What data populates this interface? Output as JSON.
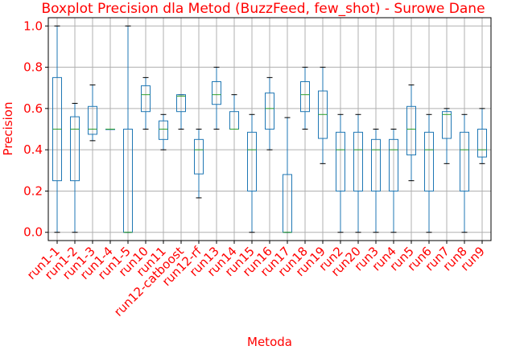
{
  "chart_data": {
    "type": "boxplot",
    "title": "Boxplot Precision dla Metod (BuzzFeed, few_shot) - Surowe Dane",
    "xlabel": "Metoda",
    "ylabel": "Precision",
    "ylim": [
      -0.04,
      1.04
    ],
    "yticks": [
      0.0,
      0.2,
      0.4,
      0.6,
      0.8,
      1.0
    ],
    "ytick_labels": [
      "0.0",
      "0.2",
      "0.4",
      "0.6",
      "0.8",
      "1.0"
    ],
    "grid": true,
    "label_color": "#ff0000",
    "box_color": "#1f77b4",
    "median_color": "#2ca02c",
    "categories": [
      "run1-1",
      "run1-2",
      "run1-3",
      "run1-4",
      "run1-5",
      "run10",
      "run11",
      "run12-catboost",
      "run12-rf",
      "run13",
      "run14",
      "run15",
      "run16",
      "run17",
      "run18",
      "run19",
      "run2",
      "run20",
      "run3",
      "run4",
      "run5",
      "run6",
      "run7",
      "run8",
      "run9"
    ],
    "boxes": [
      {
        "whislo": 0.0,
        "q1": 0.25,
        "med": 0.5,
        "q3": 0.75,
        "whishi": 1.0
      },
      {
        "whislo": 0.0,
        "q1": 0.25,
        "med": 0.5,
        "q3": 0.56,
        "whishi": 0.625
      },
      {
        "whislo": 0.444,
        "q1": 0.475,
        "med": 0.5,
        "q3": 0.61,
        "whishi": 0.714
      },
      {
        "whislo": 0.5,
        "q1": 0.5,
        "med": 0.5,
        "q3": 0.5,
        "whishi": 0.5
      },
      {
        "whislo": 0.0,
        "q1": 0.0,
        "med": 0.0,
        "q3": 0.5,
        "whishi": 1.0
      },
      {
        "whislo": 0.5,
        "q1": 0.585,
        "med": 0.667,
        "q3": 0.71,
        "whishi": 0.75
      },
      {
        "whislo": 0.4,
        "q1": 0.45,
        "med": 0.5,
        "q3": 0.54,
        "whishi": 0.571
      },
      {
        "whislo": 0.5,
        "q1": 0.585,
        "med": 0.66,
        "q3": 0.667,
        "whishi": 0.667
      },
      {
        "whislo": 0.167,
        "q1": 0.283,
        "med": 0.4,
        "q3": 0.45,
        "whishi": 0.5
      },
      {
        "whislo": 0.5,
        "q1": 0.62,
        "med": 0.667,
        "q3": 0.73,
        "whishi": 0.8
      },
      {
        "whislo": 0.5,
        "q1": 0.5,
        "med": 0.5,
        "q3": 0.585,
        "whishi": 0.667
      },
      {
        "whislo": 0.0,
        "q1": 0.2,
        "med": 0.4,
        "q3": 0.485,
        "whishi": 0.571
      },
      {
        "whislo": 0.4,
        "q1": 0.5,
        "med": 0.6,
        "q3": 0.675,
        "whishi": 0.75
      },
      {
        "whislo": 0.0,
        "q1": 0.0,
        "med": 0.0,
        "q3": 0.28,
        "whishi": 0.556
      },
      {
        "whislo": 0.5,
        "q1": 0.585,
        "med": 0.667,
        "q3": 0.73,
        "whishi": 0.8
      },
      {
        "whislo": 0.333,
        "q1": 0.455,
        "med": 0.571,
        "q3": 0.685,
        "whishi": 0.8
      },
      {
        "whislo": 0.0,
        "q1": 0.2,
        "med": 0.4,
        "q3": 0.485,
        "whishi": 0.571
      },
      {
        "whislo": 0.0,
        "q1": 0.2,
        "med": 0.4,
        "q3": 0.485,
        "whishi": 0.571
      },
      {
        "whislo": 0.0,
        "q1": 0.2,
        "med": 0.4,
        "q3": 0.45,
        "whishi": 0.5
      },
      {
        "whislo": 0.0,
        "q1": 0.2,
        "med": 0.4,
        "q3": 0.45,
        "whishi": 0.5
      },
      {
        "whislo": 0.25,
        "q1": 0.375,
        "med": 0.5,
        "q3": 0.61,
        "whishi": 0.714
      },
      {
        "whislo": 0.0,
        "q1": 0.2,
        "med": 0.4,
        "q3": 0.485,
        "whishi": 0.571
      },
      {
        "whislo": 0.333,
        "q1": 0.455,
        "med": 0.571,
        "q3": 0.585,
        "whishi": 0.6
      },
      {
        "whislo": 0.0,
        "q1": 0.2,
        "med": 0.4,
        "q3": 0.485,
        "whishi": 0.571
      },
      {
        "whislo": 0.333,
        "q1": 0.365,
        "med": 0.4,
        "q3": 0.5,
        "whishi": 0.6
      }
    ]
  }
}
